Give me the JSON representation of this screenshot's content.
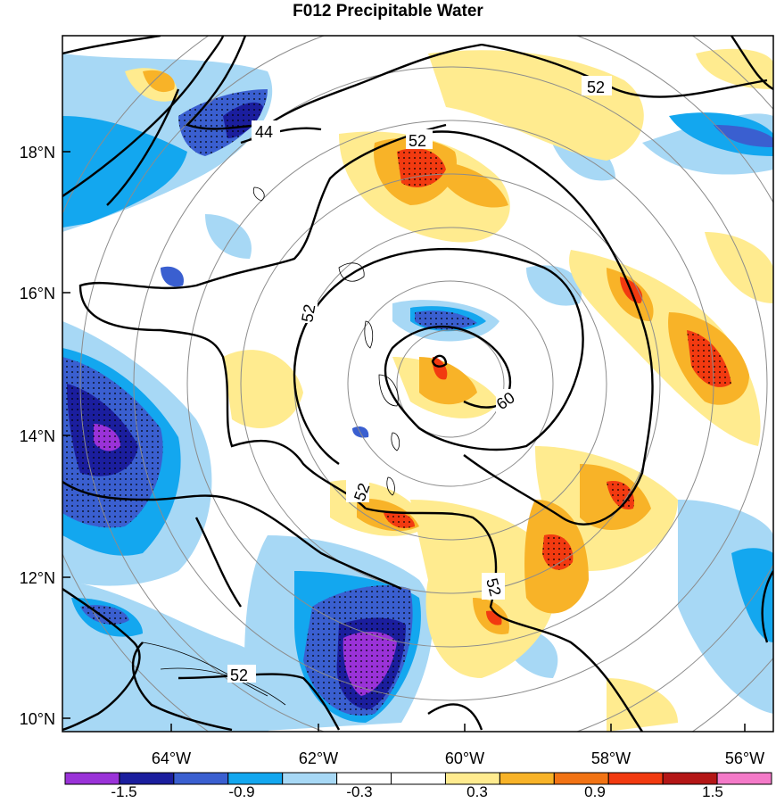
{
  "title": "F012 Precipitable Water",
  "map": {
    "lat_labels": [
      "18°N",
      "16°N",
      "14°N",
      "12°N",
      "10°N"
    ],
    "lon_labels": [
      "64°W",
      "62°W",
      "60°W",
      "58°W",
      "56°W"
    ],
    "contour_labels": [
      "44",
      "52",
      "52",
      "52",
      "52",
      "52",
      "60",
      "52"
    ]
  },
  "colorbar": {
    "colors": [
      "#9a32d8",
      "#1b1e9e",
      "#3a5fd0",
      "#13a7ef",
      "#a7d8f5",
      "#ffffff",
      "#ffffff",
      "#ffeb8f",
      "#f8b328",
      "#f27314",
      "#f23a10",
      "#b41616",
      "#f47ac8"
    ],
    "labels": [
      "-1.5",
      "-0.9",
      "-0.3",
      "0.3",
      "0.9",
      "1.5"
    ]
  },
  "fills": {
    "deep_blue": "#1b1e9e",
    "blue": "#3a5fd0",
    "mid_blue": "#13a7ef",
    "light_blue": "#a7d8f5",
    "light_yellow": "#ffeb8f",
    "orange": "#f8b328",
    "red_orange": "#f23a10",
    "purple": "#9a32d8"
  }
}
